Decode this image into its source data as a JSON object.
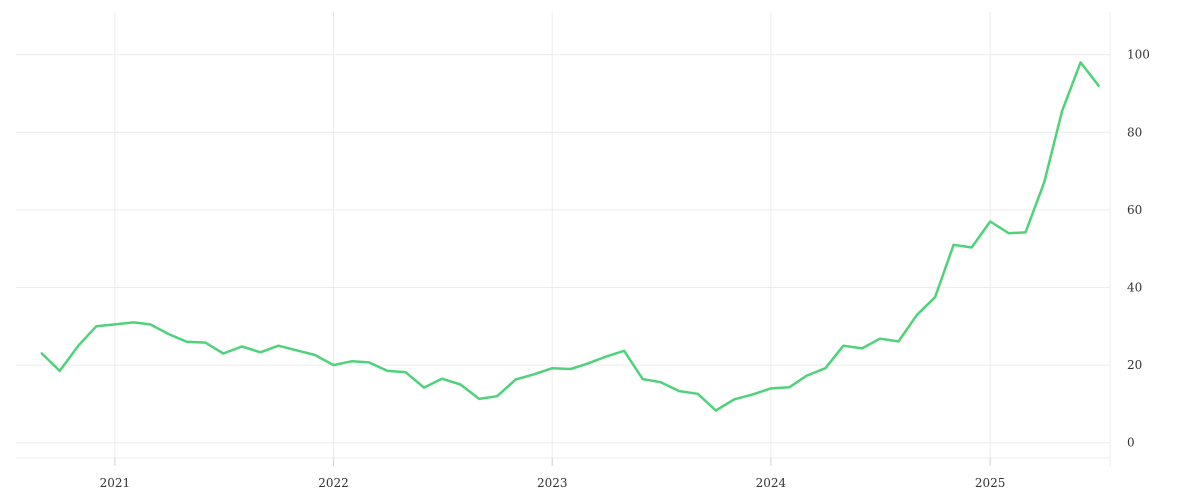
{
  "chart_data": {
    "type": "line",
    "title": "",
    "xlabel": "",
    "ylabel": "",
    "x_ticks": [
      "2021",
      "2022",
      "2023",
      "2024",
      "2025"
    ],
    "y_ticks": [
      0,
      20,
      40,
      60,
      80,
      100
    ],
    "y_range": [
      -6,
      111
    ],
    "x_range": [
      "2020-07-20",
      "2025-07-20"
    ],
    "y_axis_position": "right",
    "grid": true,
    "legend": "none",
    "colors": {
      "line": "#4fd27a",
      "grid": "#ececec"
    },
    "series": [
      {
        "x": [
          "2020-09-01",
          "2020-10-01",
          "2020-11-01",
          "2020-12-01",
          "2021-01-01",
          "2021-02-01",
          "2021-03-01",
          "2021-04-01",
          "2021-05-01",
          "2021-06-01",
          "2021-07-01",
          "2021-08-01",
          "2021-09-01",
          "2021-10-01",
          "2021-11-01",
          "2021-12-01",
          "2022-01-01",
          "2022-02-01",
          "2022-03-01",
          "2022-04-01",
          "2022-05-01",
          "2022-06-01",
          "2022-07-01",
          "2022-08-01",
          "2022-09-01",
          "2022-10-01",
          "2022-11-01",
          "2022-12-01",
          "2023-01-01",
          "2023-02-01",
          "2023-03-01",
          "2023-04-01",
          "2023-05-01",
          "2023-06-01",
          "2023-07-01",
          "2023-08-01",
          "2023-09-01",
          "2023-10-01",
          "2023-11-01",
          "2023-12-01",
          "2024-01-01",
          "2024-02-01",
          "2024-03-01",
          "2024-04-01",
          "2024-05-01",
          "2024-06-01",
          "2024-07-01",
          "2024-08-01",
          "2024-09-01",
          "2024-10-01",
          "2024-11-01",
          "2024-12-01",
          "2025-01-01",
          "2025-02-01",
          "2025-03-01",
          "2025-04-01",
          "2025-05-01",
          "2025-06-01",
          "2025-07-01"
        ],
        "y": [
          23,
          18.5,
          25,
          30,
          30.5,
          31,
          30.5,
          28,
          26,
          25.8,
          23,
          24.8,
          23.3,
          25,
          23.8,
          22.6,
          20,
          21,
          20.7,
          18.5,
          18.2,
          14.2,
          16.5,
          15,
          11.3,
          12,
          16.3,
          17.6,
          19.2,
          19,
          20.4,
          22.2,
          23.7,
          16.4,
          15.6,
          13.3,
          12.6,
          8.3,
          11.2,
          12.4,
          14,
          14.3,
          17.3,
          19.2,
          25,
          24.3,
          26.8,
          26.1,
          33,
          37.5,
          51,
          50.3,
          57,
          54,
          54.2,
          67,
          85.5,
          98,
          92
        ]
      }
    ]
  }
}
